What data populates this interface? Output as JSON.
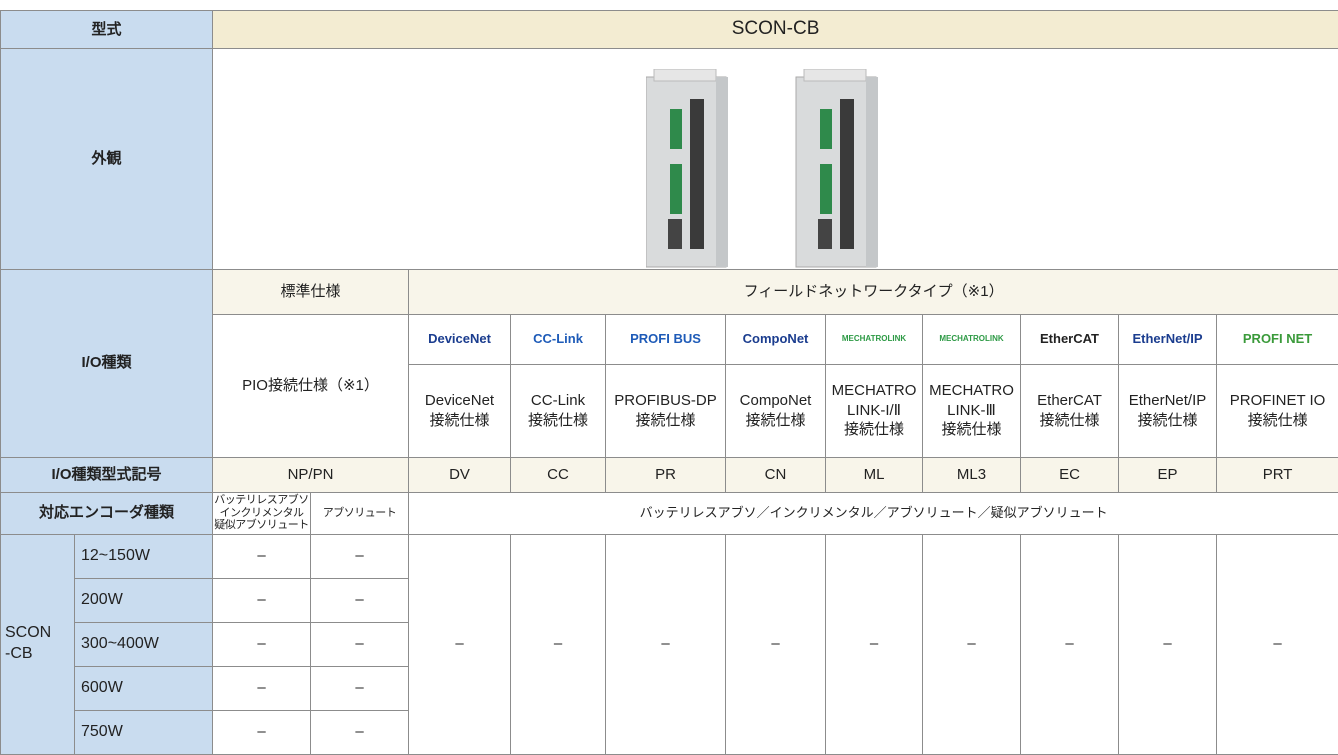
{
  "header": {
    "label": "型式",
    "value": "SCON-CB"
  },
  "appearance": {
    "label": "外観"
  },
  "io": {
    "label": "I/O種類",
    "standard": "標準仕様",
    "fieldnetwork": "フィールドネットワークタイプ（※1）",
    "pio": "PIO接続仕様（※1）",
    "networks": [
      {
        "logo": "DeviceNet",
        "name": "DeviceNet\n接続仕様",
        "code": "DV"
      },
      {
        "logo": "CC-Link",
        "name": "CC-Link\n接続仕様",
        "code": "CC"
      },
      {
        "logo": "PROFI BUS",
        "name": "PROFIBUS-DP\n接続仕様",
        "code": "PR"
      },
      {
        "logo": "CompoNet",
        "name": "CompoNet\n接続仕様",
        "code": "CN"
      },
      {
        "logo": "MECHATROLINK",
        "name": "MECHATRO\nLINK-I/Ⅱ\n接続仕様",
        "code": "ML"
      },
      {
        "logo": "MECHATROLINK",
        "name": "MECHATRO\nLINK-Ⅲ\n接続仕様",
        "code": "ML3"
      },
      {
        "logo": "EtherCAT",
        "name": "EtherCAT\n接続仕様",
        "code": "EC"
      },
      {
        "logo": "EtherNet/IP",
        "name": "EtherNet/IP\n接続仕様",
        "code": "EP"
      },
      {
        "logo": "PROFI NET",
        "name": "PROFINET IO\n接続仕様",
        "code": "PRT"
      }
    ]
  },
  "code": {
    "label": "I/O種類型式記号",
    "standard": "NP/PN"
  },
  "encoder": {
    "label": "対応エンコーダ種類",
    "standard": [
      "バッテリレスアブソ\nインクリメンタル\n疑似アブソリュート",
      "アブソリュート"
    ],
    "fieldnetwork": "バッテリレスアブソ／インクリメンタル／アブソリュート／疑似アブソリュート"
  },
  "models": {
    "label": "SCON\n-CB",
    "rows": [
      {
        "power": "12~150W",
        "values": [
          "–",
          "–"
        ]
      },
      {
        "power": "200W",
        "values": [
          "–",
          "–"
        ]
      },
      {
        "power": "300~400W",
        "values": [
          "–",
          "–"
        ]
      },
      {
        "power": "600W",
        "values": [
          "–",
          "–"
        ]
      },
      {
        "power": "750W",
        "values": [
          "–",
          "–"
        ]
      }
    ],
    "fieldnetwork_values": [
      "–",
      "–",
      "–",
      "–",
      "–",
      "–",
      "–",
      "–",
      "–"
    ]
  }
}
